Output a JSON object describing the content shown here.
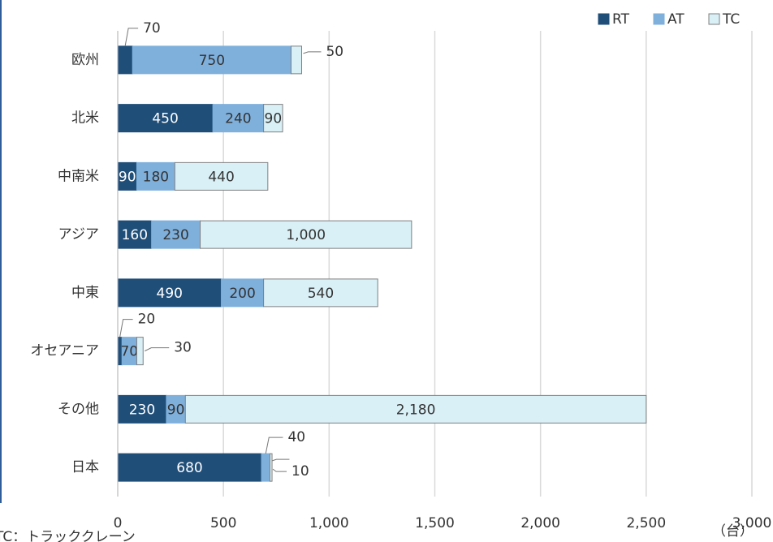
{
  "chart_data": {
    "type": "bar",
    "orientation": "horizontal",
    "stacked": true,
    "categories": [
      "欧州",
      "北米",
      "中南米",
      "アジア",
      "中東",
      "オセアニア",
      "その他",
      "日本"
    ],
    "series": [
      {
        "name": "RT",
        "color": "#1f4e79",
        "values": [
          70,
          450,
          90,
          160,
          490,
          20,
          230,
          680
        ]
      },
      {
        "name": "AT",
        "color": "#7fb0dc",
        "values": [
          750,
          240,
          180,
          230,
          200,
          70,
          90,
          40
        ]
      },
      {
        "name": "TC",
        "color": "#d9f0f7",
        "values": [
          50,
          90,
          440,
          1000,
          540,
          30,
          2180,
          10
        ],
        "value_labels": [
          "50",
          "90",
          "440",
          "1,000",
          "540",
          "30",
          "2,180",
          "10"
        ]
      }
    ],
    "xlim": [
      0,
      3000
    ],
    "xticks": [
      0,
      500,
      {
        "value": 1000,
        "label": "1,000"
      },
      {
        "value": 1500,
        "label": "1,500"
      },
      {
        "value": 2000,
        "label": "2,000"
      },
      {
        "value": 2500,
        "label": "2,500"
      },
      {
        "value": 3000,
        "label": "3,000"
      }
    ],
    "x_unit": "（台）",
    "note": "TC：トラッククレーン",
    "grid": true,
    "legend": "top-right"
  }
}
